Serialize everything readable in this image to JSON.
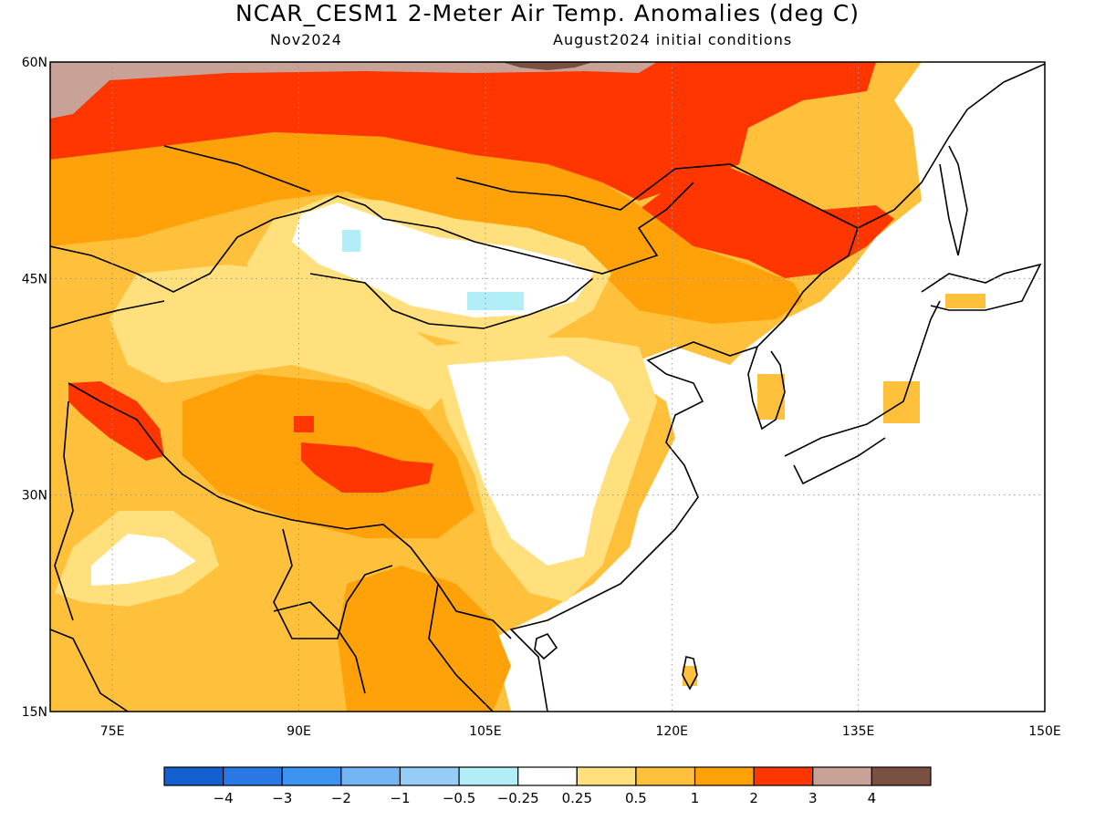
{
  "title": "NCAR_CESM1 2-Meter Air Temp. Anomalies (deg C)",
  "subtitle_left": "Nov2024",
  "subtitle_right": "August2024 initial conditions",
  "map": {
    "lon_range": [
      70,
      150
    ],
    "lat_range": [
      15,
      60
    ],
    "lat_labels": [
      "60N",
      "45N",
      "30N",
      "15N"
    ],
    "lon_labels": [
      "75E",
      "90E",
      "105E",
      "120E",
      "135E",
      "150E"
    ],
    "gridlines": "dotted"
  },
  "colorbar": {
    "colors": [
      "#1560d0",
      "#2a78e6",
      "#3d93f0",
      "#74b5f4",
      "#96cdf7",
      "#b2eef8",
      "#ffffff",
      "#ffe07c",
      "#ffc03c",
      "#ffa20a",
      "#ff3600",
      "#c8a296",
      "#7a5040"
    ],
    "tick_labels": [
      "-4",
      "-3",
      "-2",
      "-1",
      "-0.5",
      "-0.25",
      "0.25",
      "0.5",
      "1",
      "2",
      "3",
      "4"
    ]
  }
}
